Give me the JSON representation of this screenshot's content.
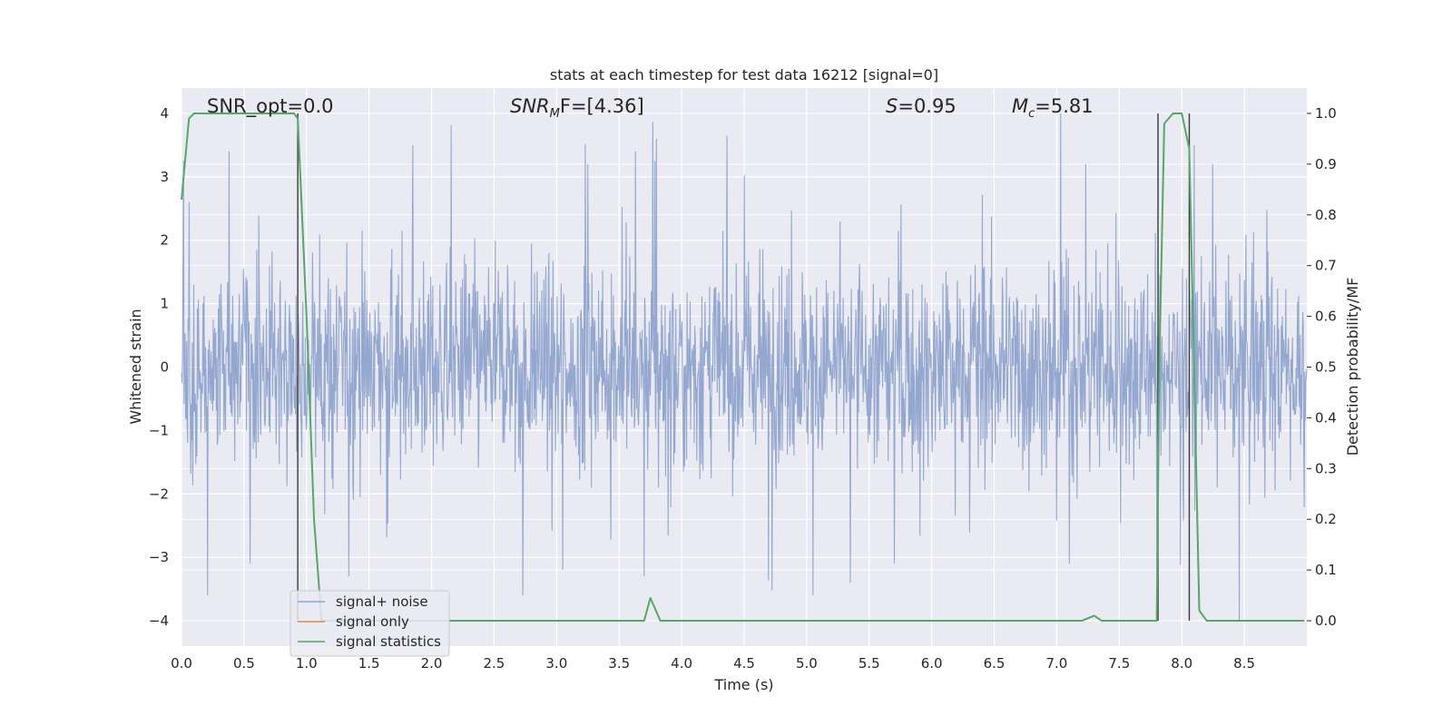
{
  "chart_data": {
    "type": "line",
    "title": "stats at each timestep for test data 16212 [signal=0]",
    "xlabel": "Time (s)",
    "ylabel": "Whitened strain",
    "y2label": "Detection probability/MF",
    "xlim": [
      0.0,
      9.0
    ],
    "ylim": [
      -4.4,
      4.4
    ],
    "y2lim": [
      -0.05,
      1.05
    ],
    "xticks": [
      "0.0",
      "0.5",
      "1.0",
      "1.5",
      "2.0",
      "2.5",
      "3.0",
      "3.5",
      "4.0",
      "4.5",
      "5.0",
      "5.5",
      "6.0",
      "6.5",
      "7.0",
      "7.5",
      "8.0",
      "8.5"
    ],
    "yticks": [
      "4",
      "3",
      "2",
      "1",
      "0",
      "−1",
      "−2",
      "−3",
      "−4"
    ],
    "y2ticks": [
      "1.0",
      "0.9",
      "0.8",
      "0.7",
      "0.6",
      "0.5",
      "0.4",
      "0.3",
      "0.2",
      "0.1",
      "0.0"
    ],
    "grid": true,
    "legend_position": "lower-left",
    "annotations": {
      "snr_opt": "SNR_opt=0.0",
      "snr_mf_base": "SNR",
      "snr_mf_sub": "M",
      "snr_mf_rest": "F=[4.36]",
      "s_label": "S",
      "s_rest": "=0.95",
      "mc_label": "M",
      "mc_sub": "c",
      "mc_rest": "=5.81"
    },
    "vertical_markers_x": [
      0.93,
      7.81,
      8.06
    ],
    "series": [
      {
        "name": "signal+ noise",
        "color": "#8fa3cc",
        "kind": "noise",
        "envelope_sigma": 1.6,
        "peaks": [
          [
            0.06,
            2.6
          ],
          [
            0.21,
            -3.6
          ],
          [
            0.38,
            3.4
          ],
          [
            0.55,
            -3.1
          ],
          [
            1.34,
            -3.3
          ],
          [
            1.85,
            3.5
          ],
          [
            2.73,
            -3.6
          ],
          [
            3.05,
            -3.2
          ],
          [
            3.25,
            3.2
          ],
          [
            3.63,
            3.4
          ],
          [
            3.8,
            3.6
          ],
          [
            3.7,
            -3.3
          ],
          [
            5.05,
            -3.6
          ],
          [
            5.35,
            -3.4
          ],
          [
            5.7,
            -3.1
          ],
          [
            7.03,
            4.0
          ],
          [
            7.1,
            -3.1
          ],
          [
            7.8,
            -3.3
          ],
          [
            8.1,
            3.5
          ],
          [
            8.46,
            -4.0
          ],
          [
            7.23,
            3.2
          ]
        ]
      },
      {
        "name": "signal only",
        "color": "#dd8452",
        "values": []
      },
      {
        "name": "signal statistics",
        "color": "#55a868",
        "axis": "right",
        "x": [
          0.0,
          0.06,
          0.1,
          0.15,
          0.9,
          0.93,
          1.0,
          1.06,
          1.12,
          1.2,
          3.65,
          3.7,
          3.75,
          3.83,
          7.2,
          7.3,
          7.36,
          7.8,
          7.82,
          7.86,
          7.93,
          8.0,
          8.06,
          8.14,
          8.2,
          8.98
        ],
        "values": [
          0.83,
          0.99,
          1.0,
          1.0,
          1.0,
          0.99,
          0.6,
          0.2,
          0.0,
          0.0,
          0.0,
          0.0,
          0.045,
          0.0,
          0.0,
          0.01,
          0.0,
          0.0,
          0.5,
          0.98,
          1.0,
          1.0,
          0.93,
          0.02,
          0.0,
          0.0
        ]
      }
    ]
  }
}
